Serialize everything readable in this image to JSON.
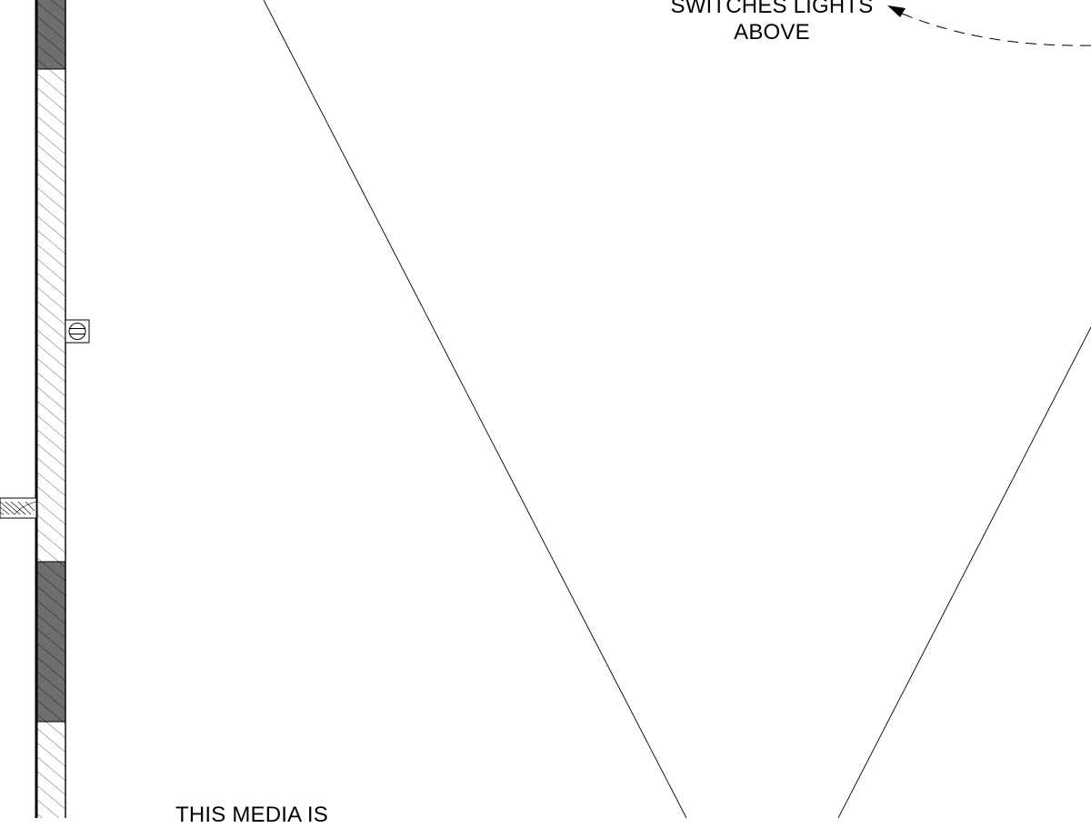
{
  "annotations": {
    "switches_line1": "SWITCHES LIGHTS",
    "switches_line2": "ABOVE",
    "media_note": "THIS MEDIA IS"
  },
  "symbols": {
    "wall_receptacle": "receptacle-icon",
    "leader_arrow": "arrowhead-icon"
  },
  "colors": {
    "line": "#000000",
    "wall_fill_dark": "#6e6e6e",
    "hatch": "#000000",
    "background": "#ffffff"
  }
}
